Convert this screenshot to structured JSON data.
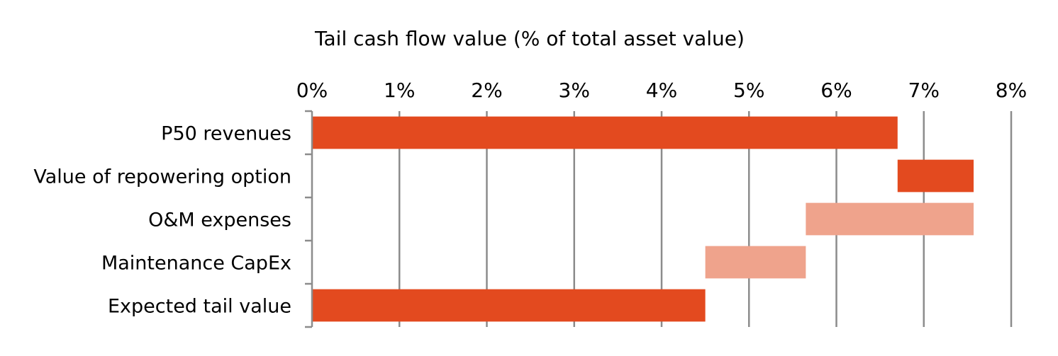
{
  "chart_data": {
    "type": "bar",
    "orientation": "horizontal",
    "style": "waterfall",
    "title": "Tail cash flow value (% of total asset value)",
    "xlabel": "",
    "ylabel": "",
    "xlim": [
      0,
      8
    ],
    "x_axis_position": "top",
    "grid": true,
    "legend": "none",
    "tick_labels": [
      "0%",
      "1%",
      "2%",
      "3%",
      "4%",
      "5%",
      "6%",
      "7%",
      "8%"
    ],
    "tick_values": [
      0,
      1,
      2,
      3,
      4,
      5,
      6,
      7,
      8
    ],
    "bars": [
      {
        "category": "P50 revenues",
        "start": 0,
        "end": 6.7,
        "kind": "total"
      },
      {
        "category": "Value of repowering option",
        "start": 6.7,
        "end": 7.57,
        "kind": "increase"
      },
      {
        "category": "O&M expenses",
        "start": 5.65,
        "end": 7.57,
        "kind": "decrease"
      },
      {
        "category": "Maintenance CapEx",
        "start": 4.5,
        "end": 5.65,
        "kind": "decrease"
      },
      {
        "category": "Expected tail value",
        "start": 0,
        "end": 4.5,
        "kind": "total"
      }
    ],
    "colors": {
      "total": "#e34a1f",
      "increase": "#e34a1f",
      "decrease": "#efa38c"
    }
  }
}
